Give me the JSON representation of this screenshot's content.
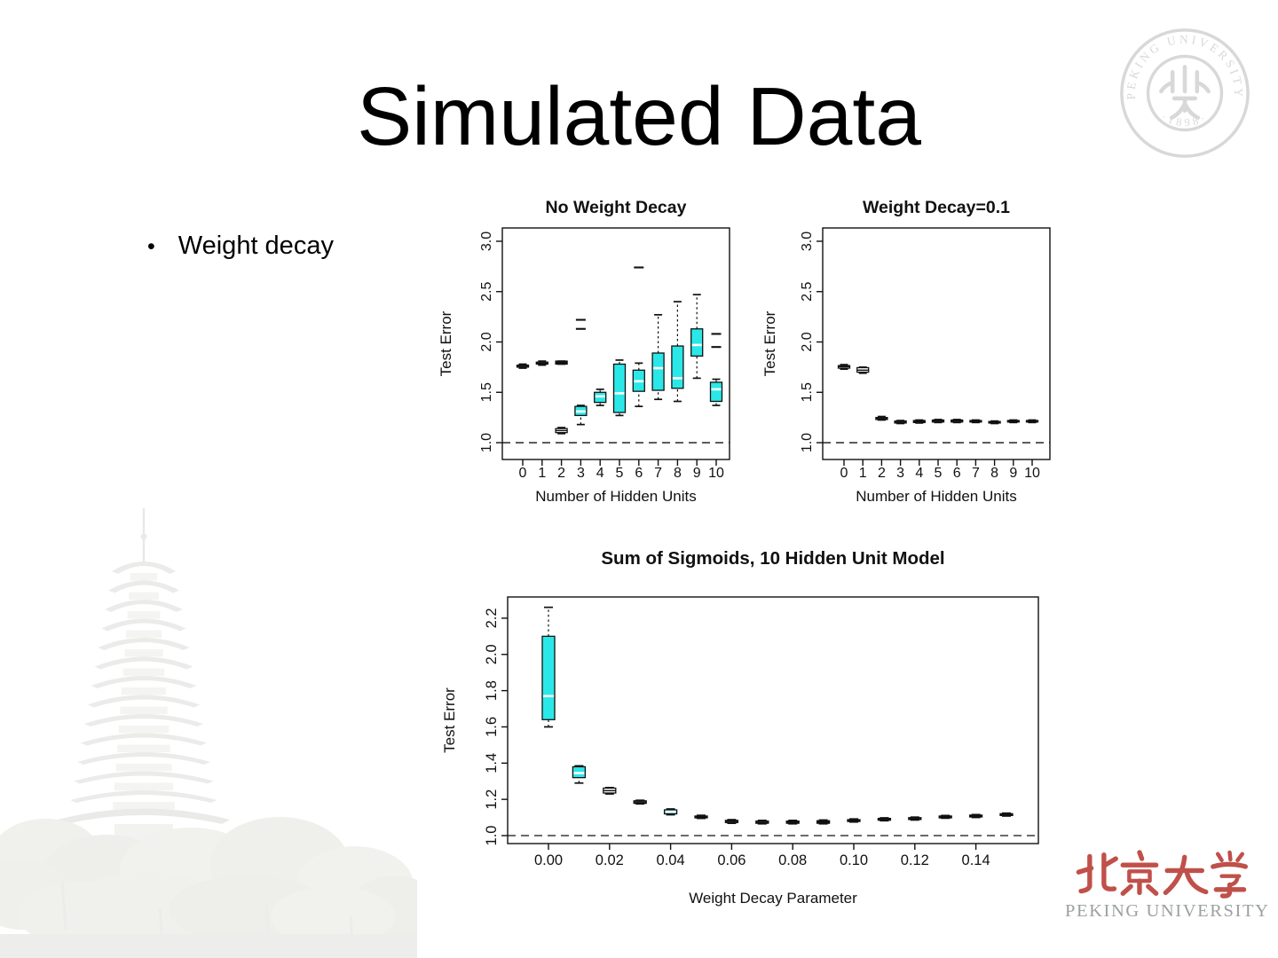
{
  "slide": {
    "title": "Simulated Data",
    "bullet": "Weight decay"
  },
  "logos": {
    "seal_text": "PEKING UNIVERSITY",
    "seal_year": "·1898·",
    "wordmark_cn": "北京大学",
    "wordmark_en": "PEKING UNIVERSITY"
  },
  "colors": {
    "box_fill": "#2BE8E8",
    "median_on_box": "#FFFFFF",
    "chart_ink": "#111111",
    "pku_red": "#C0504A",
    "seal_gray": "#D8D8D8",
    "wordmark_gray": "#9BA0A1"
  },
  "chart_data": [
    {
      "type": "boxplot",
      "title": "No Weight Decay",
      "xlabel": "Number of Hidden Units",
      "ylabel": "Test Error",
      "ref_line": 1.0,
      "grid": false,
      "ylim": [
        0.833,
        3.132
      ],
      "yticks": [
        "1.0",
        "1.5",
        "2.0",
        "2.5",
        "3.0"
      ],
      "xticks": [
        {
          "label": "0",
          "i": 0
        },
        {
          "label": "1",
          "i": 1
        },
        {
          "label": "2",
          "i": 2
        },
        {
          "label": "3",
          "i": 3
        },
        {
          "label": "4",
          "i": 4
        },
        {
          "label": "5",
          "i": 5
        },
        {
          "label": "6",
          "i": 6
        },
        {
          "label": "7",
          "i": 7
        },
        {
          "label": "8",
          "i": 8
        },
        {
          "label": "9",
          "i": 9
        },
        {
          "label": "10",
          "i": 10
        }
      ],
      "groups": [
        {
          "xi": 0,
          "lo": 1.74,
          "q1": 1.75,
          "med": 1.76,
          "q3": 1.77,
          "hi": 1.78,
          "style": "open"
        },
        {
          "xi": 1,
          "lo": 1.77,
          "q1": 1.78,
          "med": 1.79,
          "q3": 1.8,
          "hi": 1.81,
          "style": "open"
        },
        {
          "xi": 2,
          "lo": 1.78,
          "q1": 1.78,
          "med": 1.8,
          "q3": 1.81,
          "hi": 1.81,
          "style": "solid"
        },
        {
          "xi": 2,
          "lo": 1.09,
          "q1": 1.1,
          "med": 1.12,
          "q3": 1.14,
          "hi": 1.15,
          "style": "open"
        },
        {
          "xi": 3,
          "lo": 1.18,
          "q1": 1.27,
          "med": 1.31,
          "q3": 1.36,
          "hi": 1.37,
          "style": "cyan",
          "outliers": [
            2.13,
            2.22
          ]
        },
        {
          "xi": 4,
          "lo": 1.37,
          "q1": 1.4,
          "med": 1.46,
          "q3": 1.5,
          "hi": 1.53,
          "style": "cyan"
        },
        {
          "xi": 5,
          "lo": 1.27,
          "q1": 1.3,
          "med": 1.49,
          "q3": 1.78,
          "hi": 1.82,
          "style": "cyan"
        },
        {
          "xi": 6,
          "lo": 1.36,
          "q1": 1.51,
          "med": 1.61,
          "q3": 1.72,
          "hi": 1.79,
          "style": "cyan",
          "outliers": [
            2.74
          ]
        },
        {
          "xi": 7,
          "lo": 1.43,
          "q1": 1.52,
          "med": 1.74,
          "q3": 1.89,
          "hi": 2.27,
          "style": "cyan"
        },
        {
          "xi": 8,
          "lo": 1.41,
          "q1": 1.54,
          "med": 1.64,
          "q3": 1.96,
          "hi": 2.4,
          "style": "cyan"
        },
        {
          "xi": 9,
          "lo": 1.64,
          "q1": 1.86,
          "med": 1.97,
          "q3": 2.13,
          "hi": 2.47,
          "style": "cyan"
        },
        {
          "xi": 10,
          "lo": 1.37,
          "q1": 1.41,
          "med": 1.53,
          "q3": 1.6,
          "hi": 1.63,
          "style": "cyan",
          "outliers": [
            1.95,
            2.08
          ]
        }
      ]
    },
    {
      "type": "boxplot",
      "title": "Weight Decay=0.1",
      "xlabel": "Number of Hidden Units",
      "ylabel": "Test Error",
      "ref_line": 1.0,
      "grid": false,
      "ylim": [
        0.833,
        3.132
      ],
      "yticks": [
        "1.0",
        "1.5",
        "2.0",
        "2.5",
        "3.0"
      ],
      "xticks": [
        {
          "label": "0",
          "i": 0
        },
        {
          "label": "1",
          "i": 1
        },
        {
          "label": "2",
          "i": 2
        },
        {
          "label": "3",
          "i": 3
        },
        {
          "label": "4",
          "i": 4
        },
        {
          "label": "5",
          "i": 5
        },
        {
          "label": "6",
          "i": 6
        },
        {
          "label": "7",
          "i": 7
        },
        {
          "label": "8",
          "i": 8
        },
        {
          "label": "9",
          "i": 9
        },
        {
          "label": "10",
          "i": 10
        }
      ],
      "groups": [
        {
          "xi": 0,
          "lo": 1.73,
          "q1": 1.74,
          "med": 1.755,
          "q3": 1.765,
          "hi": 1.775,
          "style": "open"
        },
        {
          "xi": 1,
          "lo": 1.69,
          "q1": 1.7,
          "med": 1.72,
          "q3": 1.745,
          "hi": 1.75,
          "style": "open"
        },
        {
          "xi": 2,
          "lo": 1.225,
          "q1": 1.23,
          "med": 1.24,
          "q3": 1.25,
          "hi": 1.26,
          "style": "open"
        },
        {
          "xi": 3,
          "lo": 1.19,
          "q1": 1.195,
          "med": 1.205,
          "q3": 1.215,
          "hi": 1.22,
          "style": "open"
        },
        {
          "xi": 4,
          "lo": 1.195,
          "q1": 1.2,
          "med": 1.21,
          "q3": 1.22,
          "hi": 1.225,
          "style": "solid"
        },
        {
          "xi": 5,
          "lo": 1.2,
          "q1": 1.205,
          "med": 1.215,
          "q3": 1.225,
          "hi": 1.23,
          "style": "open"
        },
        {
          "xi": 6,
          "lo": 1.2,
          "q1": 1.205,
          "med": 1.215,
          "q3": 1.225,
          "hi": 1.23,
          "style": "open"
        },
        {
          "xi": 7,
          "lo": 1.2,
          "q1": 1.205,
          "med": 1.212,
          "q3": 1.22,
          "hi": 1.225,
          "style": "open"
        },
        {
          "xi": 8,
          "lo": 1.19,
          "q1": 1.195,
          "med": 1.202,
          "q3": 1.21,
          "hi": 1.215,
          "style": "open"
        },
        {
          "xi": 9,
          "lo": 1.2,
          "q1": 1.205,
          "med": 1.212,
          "q3": 1.22,
          "hi": 1.225,
          "style": "open"
        },
        {
          "xi": 10,
          "lo": 1.2,
          "q1": 1.205,
          "med": 1.212,
          "q3": 1.22,
          "hi": 1.225,
          "style": "open"
        }
      ]
    },
    {
      "type": "boxplot",
      "title": "Sum of Sigmoids, 10 Hidden Unit Model",
      "xlabel": "Weight Decay Parameter",
      "ylabel": "Test Error",
      "ref_line": 1.0,
      "grid": false,
      "ylim": [
        0.956,
        2.317
      ],
      "yticks": [
        "1.0",
        "1.2",
        "1.4",
        "1.6",
        "1.8",
        "2.0",
        "2.2"
      ],
      "xticks": [
        {
          "label": "0.00",
          "i": 0
        },
        {
          "label": "0.02",
          "i": 2
        },
        {
          "label": "0.04",
          "i": 4
        },
        {
          "label": "0.06",
          "i": 6
        },
        {
          "label": "0.08",
          "i": 8
        },
        {
          "label": "0.10",
          "i": 10
        },
        {
          "label": "0.12",
          "i": 12
        },
        {
          "label": "0.14",
          "i": 14
        }
      ],
      "groups": [
        {
          "xi": 0,
          "lo": 1.6,
          "q1": 1.64,
          "med": 1.77,
          "q3": 2.1,
          "hi": 2.26,
          "style": "cyan"
        },
        {
          "xi": 1,
          "lo": 1.29,
          "q1": 1.32,
          "med": 1.345,
          "q3": 1.38,
          "hi": 1.385,
          "style": "cyan"
        },
        {
          "xi": 2,
          "lo": 1.23,
          "q1": 1.235,
          "med": 1.248,
          "q3": 1.262,
          "hi": 1.265,
          "style": "open"
        },
        {
          "xi": 3,
          "lo": 1.175,
          "q1": 1.178,
          "med": 1.185,
          "q3": 1.192,
          "hi": 1.195,
          "style": "open"
        },
        {
          "xi": 4,
          "lo": 1.115,
          "q1": 1.12,
          "med": 1.132,
          "q3": 1.142,
          "hi": 1.147,
          "style": "cyan"
        },
        {
          "xi": 5,
          "lo": 1.095,
          "q1": 1.098,
          "med": 1.103,
          "q3": 1.108,
          "hi": 1.112,
          "style": "open"
        },
        {
          "xi": 6,
          "lo": 1.068,
          "q1": 1.072,
          "med": 1.078,
          "q3": 1.084,
          "hi": 1.088,
          "style": "open"
        },
        {
          "xi": 7,
          "lo": 1.065,
          "q1": 1.068,
          "med": 1.074,
          "q3": 1.08,
          "hi": 1.084,
          "style": "open"
        },
        {
          "xi": 8,
          "lo": 1.065,
          "q1": 1.068,
          "med": 1.074,
          "q3": 1.08,
          "hi": 1.084,
          "style": "solid"
        },
        {
          "xi": 9,
          "lo": 1.065,
          "q1": 1.068,
          "med": 1.075,
          "q3": 1.082,
          "hi": 1.086,
          "style": "solid"
        },
        {
          "xi": 10,
          "lo": 1.075,
          "q1": 1.078,
          "med": 1.083,
          "q3": 1.088,
          "hi": 1.092,
          "style": "open"
        },
        {
          "xi": 11,
          "lo": 1.082,
          "q1": 1.085,
          "med": 1.09,
          "q3": 1.095,
          "hi": 1.098,
          "style": "open"
        },
        {
          "xi": 12,
          "lo": 1.086,
          "q1": 1.089,
          "med": 1.094,
          "q3": 1.099,
          "hi": 1.102,
          "style": "open"
        },
        {
          "xi": 13,
          "lo": 1.096,
          "q1": 1.098,
          "med": 1.103,
          "q3": 1.108,
          "hi": 1.111,
          "style": "open"
        },
        {
          "xi": 14,
          "lo": 1.1,
          "q1": 1.103,
          "med": 1.108,
          "q3": 1.113,
          "hi": 1.116,
          "style": "open"
        },
        {
          "xi": 15,
          "lo": 1.108,
          "q1": 1.111,
          "med": 1.116,
          "q3": 1.121,
          "hi": 1.124,
          "style": "open"
        }
      ]
    }
  ]
}
